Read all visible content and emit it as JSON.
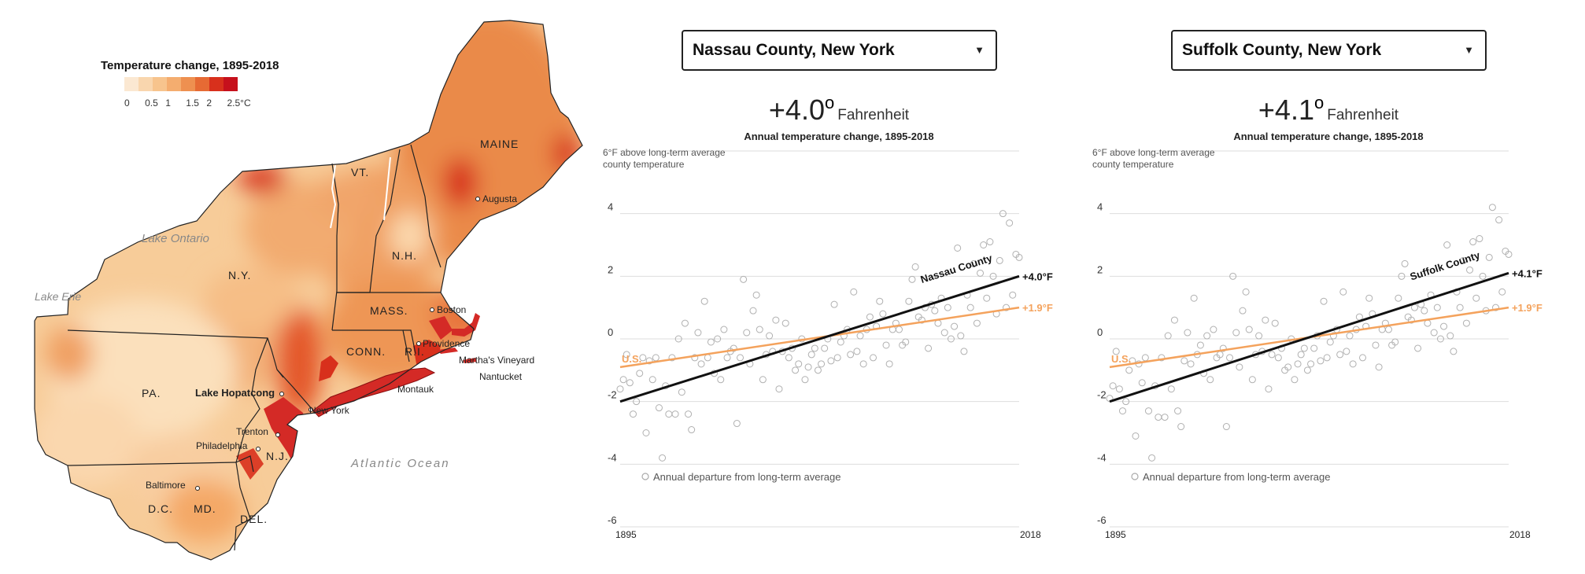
{
  "map": {
    "legend": {
      "title": "Temperature change, 1895-2018",
      "ticks": [
        "0",
        "0.5",
        "1",
        "1.5",
        "2",
        "2.5°C"
      ],
      "colors": [
        "#fbe8d2",
        "#f9d6ae",
        "#f7c48d",
        "#f4ad6f",
        "#ee9050",
        "#e66a34",
        "#d8301c",
        "#c6101c"
      ]
    },
    "state_labels": [
      "MAINE",
      "VT.",
      "N.H.",
      "N.Y.",
      "MASS.",
      "CONN.",
      "R.I.",
      "PA.",
      "N.J.",
      "MD.",
      "DEL.",
      "D.C."
    ],
    "water_labels": [
      "Lake Ontario",
      "Lake Erie",
      "Atlantic Ocean"
    ],
    "cities": [
      "Augusta",
      "Boston",
      "Providence",
      "Martha's Vineyard",
      "Nantucket",
      "Montauk",
      "New York",
      "Trenton",
      "Philadelphia",
      "Baltimore"
    ],
    "highlight_city": "Lake Hopatcong",
    "colors": {
      "border": "#222222",
      "ny_county_fill": "#d4202a"
    }
  },
  "panels": [
    {
      "dropdown": "Nassau County, New York",
      "headline": {
        "value": "+4.0",
        "degree": "o",
        "unit": "Fahrenheit"
      },
      "subtitle": "Annual temperature change, 1895-2018",
      "axis_note_1": "6°F above long-term average",
      "axis_note_2": "county temperature",
      "y_ticks": [
        "4",
        "2",
        "0",
        "-2",
        "-4",
        "-6"
      ],
      "x_ticks": [
        "1895",
        "2018"
      ],
      "legend_label": "Annual departure from long-term average",
      "county_label": "Nassau County",
      "county_end_label": "+4.0°F",
      "us_label": "U.S.",
      "us_end_label": "+1.9°F"
    },
    {
      "dropdown": "Suffolk County, New York",
      "headline": {
        "value": "+4.1",
        "degree": "o",
        "unit": "Fahrenheit"
      },
      "subtitle": "Annual temperature change, 1895-2018",
      "axis_note_1": "6°F above long-term average",
      "axis_note_2": "county temperature",
      "y_ticks": [
        "4",
        "2",
        "0",
        "-2",
        "-4",
        "-6"
      ],
      "x_ticks": [
        "1895",
        "2018"
      ],
      "legend_label": "Annual departure from long-term average",
      "county_label": "Suffolk County",
      "county_end_label": "+4.1°F",
      "us_label": "U.S.",
      "us_end_label": "+1.9°F"
    }
  ],
  "chart_data": [
    {
      "type": "scatter",
      "title": "Annual temperature change, 1895-2018",
      "xlim": [
        1895,
        2018
      ],
      "ylim": [
        -6,
        6
      ],
      "grid": true,
      "ylabel": "6°F above long-term average county temperature",
      "series": [
        {
          "name": "Annual departure from long-term average",
          "kind": "points",
          "x": [
            1895,
            1896,
            1897,
            1898,
            1899,
            1900,
            1901,
            1902,
            1903,
            1904,
            1905,
            1906,
            1907,
            1908,
            1909,
            1910,
            1911,
            1912,
            1913,
            1914,
            1915,
            1916,
            1917,
            1918,
            1919,
            1920,
            1921,
            1922,
            1923,
            1924,
            1925,
            1926,
            1927,
            1928,
            1929,
            1930,
            1931,
            1932,
            1933,
            1934,
            1935,
            1936,
            1937,
            1938,
            1939,
            1940,
            1941,
            1942,
            1943,
            1944,
            1945,
            1946,
            1947,
            1948,
            1949,
            1950,
            1951,
            1952,
            1953,
            1954,
            1955,
            1956,
            1957,
            1958,
            1959,
            1960,
            1961,
            1962,
            1963,
            1964,
            1965,
            1966,
            1967,
            1968,
            1969,
            1970,
            1971,
            1972,
            1973,
            1974,
            1975,
            1976,
            1977,
            1978,
            1979,
            1980,
            1981,
            1982,
            1983,
            1984,
            1985,
            1986,
            1987,
            1988,
            1989,
            1990,
            1991,
            1992,
            1993,
            1994,
            1995,
            1996,
            1997,
            1998,
            1999,
            2000,
            2001,
            2002,
            2003,
            2004,
            2005,
            2006,
            2007,
            2008,
            2009,
            2010,
            2011,
            2012,
            2013,
            2014,
            2015,
            2016,
            2017,
            2018
          ],
          "y": [
            -1.6,
            -1.3,
            -0.5,
            -1.4,
            -2.4,
            -2.0,
            -1.1,
            -0.6,
            -3.0,
            -0.7,
            -1.3,
            -0.6,
            -2.2,
            -3.8,
            -1.5,
            -2.4,
            -0.6,
            -2.4,
            0.0,
            -1.7,
            0.5,
            -2.4,
            -2.9,
            -0.6,
            0.2,
            -0.8,
            1.2,
            -0.6,
            -0.1,
            -1.1,
            0.0,
            -1.3,
            0.3,
            -0.6,
            -0.4,
            -0.3,
            -2.7,
            -0.6,
            1.9,
            0.2,
            -0.8,
            0.9,
            1.4,
            0.3,
            -1.3,
            -0.5,
            0.1,
            -0.4,
            0.6,
            -1.6,
            -0.4,
            0.5,
            -0.6,
            -0.3,
            -1.0,
            -0.8,
            0.0,
            -1.3,
            -0.9,
            -0.5,
            -0.3,
            -1.0,
            -0.8,
            -0.3,
            0.0,
            -0.7,
            1.1,
            -0.6,
            -0.1,
            0.1,
            0.3,
            -0.5,
            1.5,
            -0.4,
            0.1,
            -0.8,
            0.3,
            0.7,
            -0.6,
            0.4,
            1.2,
            0.8,
            -0.2,
            -0.8,
            0.3,
            0.5,
            0.3,
            -0.2,
            -0.1,
            1.2,
            1.9,
            2.3,
            0.7,
            0.6,
            1.0,
            -0.3,
            1.1,
            0.9,
            0.5,
            1.3,
            0.2,
            1.0,
            0.0,
            0.4,
            2.9,
            0.1,
            -0.4,
            1.4,
            1.0,
            2.4,
            0.5,
            2.1,
            3.0,
            1.3,
            3.1,
            2.0,
            0.8,
            2.5,
            4.0,
            1.0,
            3.7,
            1.4,
            2.7,
            2.6
          ]
        },
        {
          "name": "Nassau County",
          "kind": "trend",
          "x": [
            1895,
            2018
          ],
          "y": [
            -2.0,
            2.0
          ],
          "end_label": "+4.0°F"
        },
        {
          "name": "U.S.",
          "kind": "trend",
          "x": [
            1895,
            2018
          ],
          "y": [
            -0.9,
            1.0
          ],
          "end_label": "+1.9°F"
        }
      ]
    },
    {
      "type": "scatter",
      "title": "Annual temperature change, 1895-2018",
      "xlim": [
        1895,
        2018
      ],
      "ylim": [
        -6,
        6
      ],
      "grid": true,
      "ylabel": "6°F above long-term average county temperature",
      "series": [
        {
          "name": "Annual departure from long-term average",
          "kind": "points",
          "x": [
            1895,
            1896,
            1897,
            1898,
            1899,
            1900,
            1901,
            1902,
            1903,
            1904,
            1905,
            1906,
            1907,
            1908,
            1909,
            1910,
            1911,
            1912,
            1913,
            1914,
            1915,
            1916,
            1917,
            1918,
            1919,
            1920,
            1921,
            1922,
            1923,
            1924,
            1925,
            1926,
            1927,
            1928,
            1929,
            1930,
            1931,
            1932,
            1933,
            1934,
            1935,
            1936,
            1937,
            1938,
            1939,
            1940,
            1941,
            1942,
            1943,
            1944,
            1945,
            1946,
            1947,
            1948,
            1949,
            1950,
            1951,
            1952,
            1953,
            1954,
            1955,
            1956,
            1957,
            1958,
            1959,
            1960,
            1961,
            1962,
            1963,
            1964,
            1965,
            1966,
            1967,
            1968,
            1969,
            1970,
            1971,
            1972,
            1973,
            1974,
            1975,
            1976,
            1977,
            1978,
            1979,
            1980,
            1981,
            1982,
            1983,
            1984,
            1985,
            1986,
            1987,
            1988,
            1989,
            1990,
            1991,
            1992,
            1993,
            1994,
            1995,
            1996,
            1997,
            1998,
            1999,
            2000,
            2001,
            2002,
            2003,
            2004,
            2005,
            2006,
            2007,
            2008,
            2009,
            2010,
            2011,
            2012,
            2013,
            2014,
            2015,
            2016,
            2017,
            2018
          ],
          "y": [
            -1.9,
            -1.5,
            -0.4,
            -1.6,
            -2.3,
            -2.0,
            -1.0,
            -0.7,
            -3.1,
            -0.8,
            -1.4,
            -0.6,
            -2.3,
            -3.8,
            -1.5,
            -2.5,
            -0.6,
            -2.5,
            0.1,
            -1.6,
            0.6,
            -2.3,
            -2.8,
            -0.7,
            0.2,
            -0.8,
            1.3,
            -0.5,
            -0.2,
            -1.1,
            0.1,
            -1.3,
            0.3,
            -0.6,
            -0.5,
            -0.3,
            -2.8,
            -0.6,
            2.0,
            0.2,
            -0.9,
            0.9,
            1.5,
            0.3,
            -1.3,
            -0.5,
            0.1,
            -0.4,
            0.6,
            -1.6,
            -0.5,
            0.5,
            -0.6,
            -0.3,
            -1.0,
            -0.9,
            0.0,
            -1.3,
            -0.8,
            -0.5,
            -0.3,
            -1.0,
            -0.8,
            -0.3,
            0.1,
            -0.7,
            1.2,
            -0.6,
            -0.1,
            0.1,
            0.3,
            -0.5,
            1.5,
            -0.4,
            0.1,
            -0.8,
            0.3,
            0.7,
            -0.6,
            0.4,
            1.3,
            0.8,
            -0.2,
            -0.9,
            0.3,
            0.5,
            0.3,
            -0.2,
            -0.1,
            1.3,
            2.0,
            2.4,
            0.7,
            0.6,
            1.0,
            -0.3,
            1.1,
            0.9,
            0.5,
            1.4,
            0.2,
            1.0,
            0.0,
            0.4,
            3.0,
            0.1,
            -0.4,
            1.5,
            1.0,
            2.5,
            0.5,
            2.2,
            3.1,
            1.3,
            3.2,
            2.0,
            0.9,
            2.6,
            4.2,
            1.0,
            3.8,
            1.5,
            2.8,
            2.7
          ]
        },
        {
          "name": "Suffolk County",
          "kind": "trend",
          "x": [
            1895,
            2018
          ],
          "y": [
            -2.0,
            2.1
          ],
          "end_label": "+4.1°F"
        },
        {
          "name": "U.S.",
          "kind": "trend",
          "x": [
            1895,
            2018
          ],
          "y": [
            -0.9,
            1.0
          ],
          "end_label": "+1.9°F"
        }
      ]
    }
  ]
}
